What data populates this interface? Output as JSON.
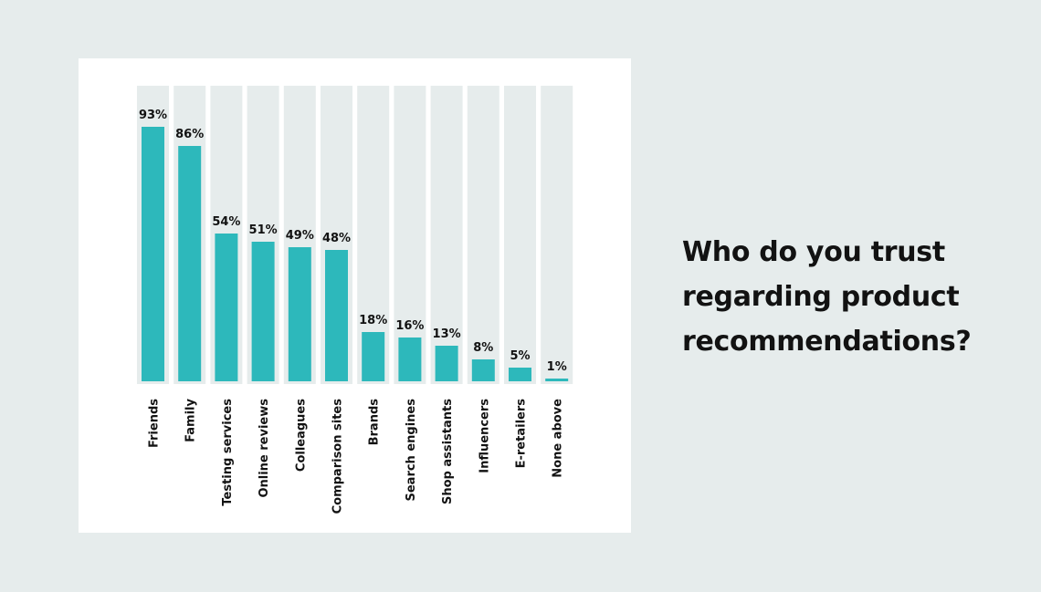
{
  "question": {
    "lines": [
      "Who do you trust",
      "regarding product",
      "recommendations?"
    ]
  },
  "colors": {
    "page_background": "#e6ecec",
    "card_background": "#ffffff",
    "track": "#e6ecec",
    "bar": "#2db8bb",
    "text": "#121212"
  },
  "chart_data": {
    "type": "bar",
    "title": "",
    "xlabel": "",
    "ylabel": "",
    "ylim": [
      0,
      100
    ],
    "grid": false,
    "legend": "none",
    "categories": [
      "Friends",
      "Family",
      "Testing services",
      "Online reviews",
      "Colleagues",
      "Comparison sites",
      "Brands",
      "Search engines",
      "Shop assistants",
      "Influencers",
      "E-retailers",
      "None above"
    ],
    "values": [
      93,
      86,
      54,
      51,
      49,
      48,
      18,
      16,
      13,
      8,
      5,
      1
    ],
    "value_labels": [
      "93%",
      "86%",
      "54%",
      "51%",
      "49%",
      "48%",
      "18%",
      "16%",
      "13%",
      "8%",
      "5%",
      "1%"
    ]
  }
}
